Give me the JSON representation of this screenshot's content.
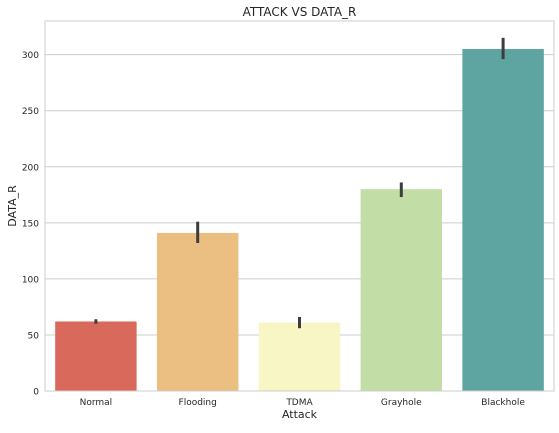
{
  "chart_data": {
    "type": "bar",
    "title": "ATTACK VS DATA_R",
    "xlabel": "Attack",
    "ylabel": "DATA_R",
    "categories": [
      "Normal",
      "Flooding",
      "TDMA",
      "Grayhole",
      "Blackhole"
    ],
    "values": [
      62,
      141,
      61,
      180,
      305
    ],
    "error_bars": [
      [
        60,
        64
      ],
      [
        132,
        151
      ],
      [
        56,
        66
      ],
      [
        173,
        186
      ],
      [
        296,
        315
      ]
    ],
    "colors": [
      "#d9695a",
      "#ebbf82",
      "#f7f6c4",
      "#c2dea6",
      "#5ea4a1"
    ],
    "ylim": [
      0,
      330
    ],
    "yticks": [
      0,
      50,
      100,
      150,
      200,
      250,
      300
    ],
    "grid": true,
    "style": {
      "grid_color": "#cccccc",
      "axes_edge_color": "#cccccc",
      "error_bar_color": "#3d3d3d",
      "text_color": "#262626",
      "background": "#ffffff"
    }
  }
}
